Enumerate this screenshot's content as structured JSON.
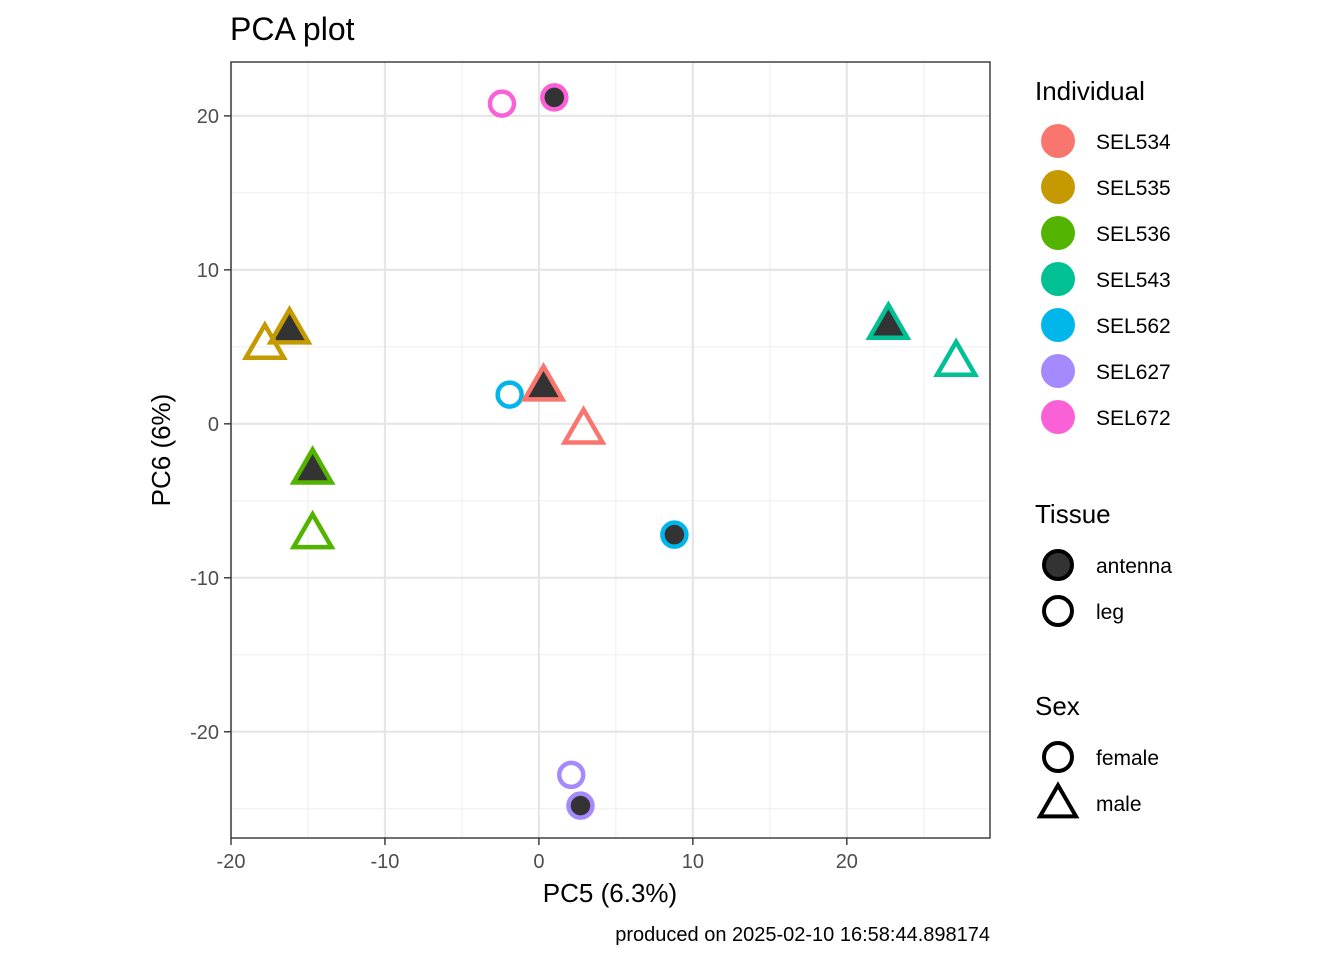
{
  "chart_data": {
    "type": "scatter",
    "title": "PCA plot",
    "xlabel": "PC5 (6.3%)",
    "ylabel": "PC6 (6%)",
    "caption": "produced on 2025-02-10 16:58:44.898174",
    "xlim": [
      -20,
      29.3
    ],
    "ylim": [
      -26.9,
      23.5
    ],
    "x_ticks": [
      -20,
      -10,
      0,
      10,
      20
    ],
    "x_tick_labels": [
      "-20",
      "-10",
      "0",
      "10",
      "20"
    ],
    "y_ticks": [
      -20,
      -10,
      0,
      10,
      20
    ],
    "y_tick_labels": [
      "-20",
      "-10",
      "0",
      "10",
      "20"
    ],
    "x_minor": [
      -15,
      -5,
      5,
      15,
      25
    ],
    "y_minor": [
      -25,
      -15,
      -5,
      5,
      15
    ],
    "grid": true,
    "legend_position": "right",
    "legends": [
      {
        "title": "Individual",
        "kind": "color",
        "items": [
          {
            "label": "SEL534",
            "color": "#F8766D"
          },
          {
            "label": "SEL535",
            "color": "#C49A00"
          },
          {
            "label": "SEL536",
            "color": "#53B400"
          },
          {
            "label": "SEL543",
            "color": "#00C094"
          },
          {
            "label": "SEL562",
            "color": "#00B6EB"
          },
          {
            "label": "SEL627",
            "color": "#A58AFF"
          },
          {
            "label": "SEL672",
            "color": "#FB61D7"
          }
        ]
      },
      {
        "title": "Tissue",
        "kind": "fill",
        "items": [
          {
            "label": "antenna",
            "filled": true
          },
          {
            "label": "leg",
            "filled": false
          }
        ]
      },
      {
        "title": "Sex",
        "kind": "shape",
        "items": [
          {
            "label": "female",
            "shape": "circle"
          },
          {
            "label": "male",
            "shape": "triangle"
          }
        ]
      }
    ],
    "points": [
      {
        "x": 1.0,
        "y": 21.2,
        "individual": "SEL672",
        "tissue": "antenna",
        "sex": "female"
      },
      {
        "x": -2.4,
        "y": 20.8,
        "individual": "SEL672",
        "tissue": "leg",
        "sex": "female"
      },
      {
        "x": -16.2,
        "y": 6.0,
        "individual": "SEL535",
        "tissue": "antenna",
        "sex": "male"
      },
      {
        "x": -17.8,
        "y": 5.0,
        "individual": "SEL535",
        "tissue": "leg",
        "sex": "male"
      },
      {
        "x": 22.7,
        "y": 6.3,
        "individual": "SEL543",
        "tissue": "antenna",
        "sex": "male"
      },
      {
        "x": 27.1,
        "y": 3.9,
        "individual": "SEL543",
        "tissue": "leg",
        "sex": "male"
      },
      {
        "x": -1.9,
        "y": 1.9,
        "individual": "SEL562",
        "tissue": "leg",
        "sex": "female"
      },
      {
        "x": 0.3,
        "y": 2.3,
        "individual": "SEL534",
        "tissue": "antenna",
        "sex": "male"
      },
      {
        "x": 2.9,
        "y": -0.5,
        "individual": "SEL534",
        "tissue": "leg",
        "sex": "male"
      },
      {
        "x": -14.7,
        "y": -3.1,
        "individual": "SEL536",
        "tissue": "antenna",
        "sex": "male"
      },
      {
        "x": -14.7,
        "y": -7.3,
        "individual": "SEL536",
        "tissue": "leg",
        "sex": "male"
      },
      {
        "x": 8.8,
        "y": -7.2,
        "individual": "SEL562",
        "tissue": "antenna",
        "sex": "female"
      },
      {
        "x": 2.1,
        "y": -22.8,
        "individual": "SEL627",
        "tissue": "leg",
        "sex": "female"
      },
      {
        "x": 2.7,
        "y": -24.8,
        "individual": "SEL627",
        "tissue": "antenna",
        "sex": "female"
      }
    ]
  }
}
